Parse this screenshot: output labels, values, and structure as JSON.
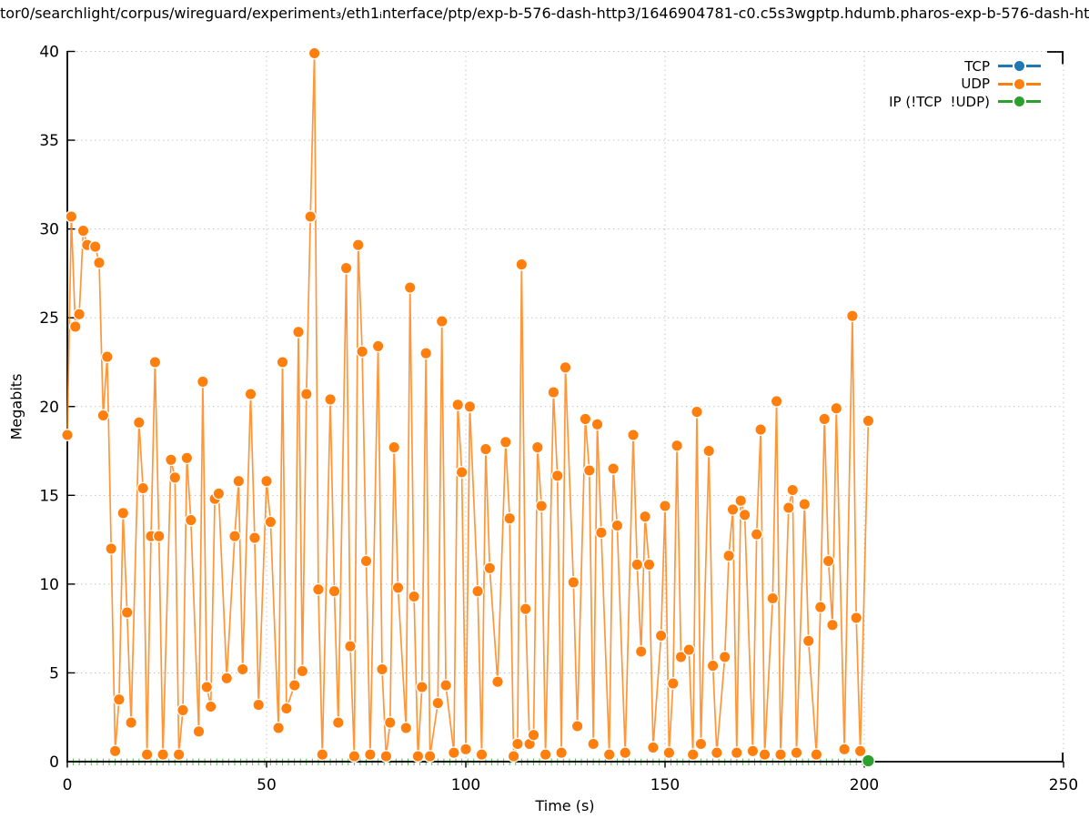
{
  "title": "tor0/searchlight/corpus/wireguard/experiment₃/eth1ᵢnterface/ptp/exp-b-576-dash-http3/1646904781-c0.c5s3wgptp.hdumb.pharos-exp-b-576-dash-htt",
  "chart_data": {
    "type": "line",
    "title": "tor0/searchlight/corpus/wireguard/experiment₃/eth1ᵢnterface/ptp/exp-b-576-dash-http3/1646904781-c0.c5s3wgptp.hdumb.pharos-exp-b-576-dash-htt",
    "xlabel": "Time (s)",
    "ylabel": "Megabits",
    "xlim": [
      0,
      250
    ],
    "ylim": [
      0,
      40
    ],
    "x_ticks": [
      0,
      50,
      100,
      150,
      200,
      250
    ],
    "y_ticks": [
      0,
      5,
      10,
      15,
      20,
      25,
      30,
      35,
      40
    ],
    "grid": "dotted",
    "legend_position": "top-right",
    "colors": {
      "tcp": "#1f77b4",
      "udp": "#ff7f0e",
      "ip_other": "#2ca02c"
    },
    "series": [
      {
        "name": "TCP",
        "color": "#1f77b4",
        "visible_in_plot": false,
        "points": []
      },
      {
        "name": "UDP",
        "color": "#ff7f0e",
        "visible_in_plot": true,
        "points": [
          [
            0,
            18.4
          ],
          [
            1,
            30.7
          ],
          [
            2,
            24.5
          ],
          [
            3,
            25.2
          ],
          [
            4,
            29.9
          ],
          [
            5,
            29.1
          ],
          [
            7,
            29.0
          ],
          [
            8,
            28.1
          ],
          [
            9,
            19.5
          ],
          [
            10,
            22.8
          ],
          [
            11,
            12.0
          ],
          [
            12,
            0.6
          ],
          [
            13,
            3.5
          ],
          [
            14,
            14.0
          ],
          [
            15,
            8.4
          ],
          [
            16,
            2.2
          ],
          [
            18,
            19.1
          ],
          [
            19,
            15.4
          ],
          [
            20,
            0.4
          ],
          [
            21,
            12.7
          ],
          [
            22,
            22.5
          ],
          [
            23,
            12.7
          ],
          [
            24,
            0.4
          ],
          [
            26,
            17.0
          ],
          [
            27,
            16.0
          ],
          [
            28,
            0.4
          ],
          [
            29,
            2.9
          ],
          [
            30,
            17.1
          ],
          [
            31,
            13.6
          ],
          [
            33,
            1.7
          ],
          [
            34,
            21.4
          ],
          [
            35,
            4.2
          ],
          [
            36,
            3.1
          ],
          [
            37,
            14.8
          ],
          [
            38,
            15.1
          ],
          [
            40,
            4.7
          ],
          [
            42,
            12.7
          ],
          [
            43,
            15.8
          ],
          [
            44,
            5.2
          ],
          [
            46,
            20.7
          ],
          [
            47,
            12.6
          ],
          [
            48,
            3.2
          ],
          [
            50,
            15.8
          ],
          [
            51,
            13.5
          ],
          [
            53,
            1.9
          ],
          [
            54,
            22.5
          ],
          [
            55,
            3.0
          ],
          [
            57,
            4.3
          ],
          [
            58,
            24.2
          ],
          [
            59,
            5.1
          ],
          [
            60,
            20.7
          ],
          [
            61,
            30.7
          ],
          [
            62,
            39.9
          ],
          [
            63,
            9.7
          ],
          [
            64,
            0.4
          ],
          [
            66,
            20.4
          ],
          [
            67,
            9.6
          ],
          [
            68,
            2.2
          ],
          [
            70,
            27.8
          ],
          [
            71,
            6.5
          ],
          [
            72,
            0.3
          ],
          [
            73,
            29.1
          ],
          [
            74,
            23.1
          ],
          [
            75,
            11.3
          ],
          [
            76,
            0.4
          ],
          [
            78,
            23.4
          ],
          [
            79,
            5.2
          ],
          [
            80,
            0.3
          ],
          [
            81,
            2.2
          ],
          [
            82,
            17.7
          ],
          [
            83,
            9.8
          ],
          [
            85,
            1.9
          ],
          [
            86,
            26.7
          ],
          [
            87,
            9.3
          ],
          [
            88,
            0.3
          ],
          [
            89,
            4.2
          ],
          [
            90,
            23.0
          ],
          [
            91,
            0.3
          ],
          [
            93,
            3.3
          ],
          [
            94,
            24.8
          ],
          [
            95,
            4.3
          ],
          [
            97,
            0.5
          ],
          [
            98,
            20.1
          ],
          [
            99,
            16.3
          ],
          [
            100,
            0.7
          ],
          [
            101,
            20.0
          ],
          [
            103,
            9.6
          ],
          [
            104,
            0.4
          ],
          [
            105,
            17.6
          ],
          [
            106,
            10.9
          ],
          [
            108,
            4.5
          ],
          [
            110,
            18.0
          ],
          [
            111,
            13.7
          ],
          [
            112,
            0.3
          ],
          [
            113,
            1.0
          ],
          [
            114,
            28.0
          ],
          [
            115,
            8.6
          ],
          [
            116,
            1.0
          ],
          [
            117,
            1.5
          ],
          [
            118,
            17.7
          ],
          [
            119,
            14.4
          ],
          [
            120,
            0.4
          ],
          [
            122,
            20.8
          ],
          [
            123,
            16.1
          ],
          [
            124,
            0.5
          ],
          [
            125,
            22.2
          ],
          [
            127,
            10.1
          ],
          [
            128,
            2.0
          ],
          [
            130,
            19.3
          ],
          [
            131,
            16.4
          ],
          [
            132,
            1.0
          ],
          [
            133,
            19.0
          ],
          [
            134,
            12.9
          ],
          [
            136,
            0.4
          ],
          [
            137,
            16.5
          ],
          [
            138,
            13.3
          ],
          [
            140,
            0.5
          ],
          [
            142,
            18.4
          ],
          [
            143,
            11.1
          ],
          [
            144,
            6.2
          ],
          [
            145,
            13.8
          ],
          [
            146,
            11.1
          ],
          [
            147,
            0.8
          ],
          [
            149,
            7.1
          ],
          [
            150,
            14.4
          ],
          [
            151,
            0.5
          ],
          [
            152,
            4.4
          ],
          [
            153,
            17.8
          ],
          [
            154,
            5.9
          ],
          [
            156,
            6.3
          ],
          [
            157,
            0.4
          ],
          [
            158,
            19.7
          ],
          [
            159,
            1.0
          ],
          [
            161,
            17.5
          ],
          [
            162,
            5.4
          ],
          [
            163,
            0.5
          ],
          [
            165,
            5.9
          ],
          [
            166,
            11.6
          ],
          [
            167,
            14.2
          ],
          [
            168,
            0.5
          ],
          [
            169,
            14.7
          ],
          [
            170,
            13.9
          ],
          [
            172,
            0.6
          ],
          [
            173,
            12.8
          ],
          [
            174,
            18.7
          ],
          [
            175,
            0.4
          ],
          [
            177,
            9.2
          ],
          [
            178,
            20.3
          ],
          [
            179,
            0.4
          ],
          [
            181,
            14.3
          ],
          [
            182,
            15.3
          ],
          [
            183,
            0.5
          ],
          [
            185,
            14.5
          ],
          [
            186,
            6.8
          ],
          [
            188,
            0.4
          ],
          [
            189,
            8.7
          ],
          [
            190,
            19.3
          ],
          [
            191,
            11.3
          ],
          [
            192,
            7.7
          ],
          [
            193,
            19.9
          ],
          [
            195,
            0.7
          ],
          [
            197,
            25.1
          ],
          [
            198,
            8.1
          ],
          [
            199,
            0.6
          ],
          [
            201,
            19.2
          ]
        ]
      },
      {
        "name": "IP (!TCP  !UDP)",
        "color": "#2ca02c",
        "visible_in_plot": true,
        "baseline_run": {
          "from": 0,
          "to": 201,
          "value": 0,
          "marker_interval": 1.5
        },
        "points": [
          [
            201,
            0
          ]
        ]
      }
    ]
  }
}
